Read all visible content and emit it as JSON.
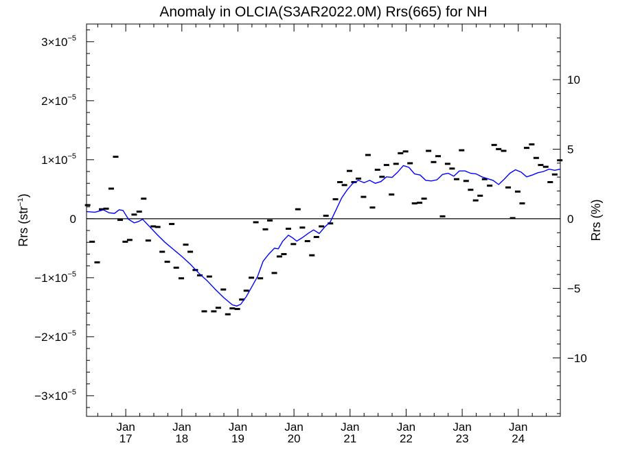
{
  "chart_data": {
    "type": "line",
    "title": "Anomaly in OLCIA(S3AR2022.0M) Rrs(665) for NH",
    "left_axis": {
      "label_main": "Rrs (str",
      "label_exp": "−1",
      "label_end": ")",
      "range": [
        -3.35e-05,
        3.3e-05
      ],
      "ticks": [
        {
          "value": -3e-05,
          "mant": "−3×10",
          "exp": "−5"
        },
        {
          "value": -2e-05,
          "mant": "−2×10",
          "exp": "−5"
        },
        {
          "value": -1e-05,
          "mant": "−1×10",
          "exp": "−5"
        },
        {
          "value": 0,
          "mant": "0",
          "exp": ""
        },
        {
          "value": 1e-05,
          "mant": "1×10",
          "exp": "−5"
        },
        {
          "value": 2e-05,
          "mant": "2×10",
          "exp": "−5"
        },
        {
          "value": 3e-05,
          "mant": "3×10",
          "exp": "−5"
        }
      ]
    },
    "right_axis": {
      "label": "Rrs (%)",
      "range": [
        -14.2,
        14.0
      ],
      "ticks": [
        {
          "value": -10,
          "label": "−10"
        },
        {
          "value": -5,
          "label": "−5"
        },
        {
          "value": 0,
          "label": "0"
        },
        {
          "value": 5,
          "label": "5"
        },
        {
          "value": 10,
          "label": "10"
        }
      ]
    },
    "x_axis": {
      "range": [
        2016.3,
        2024.75
      ],
      "ticks": [
        {
          "value": 2017,
          "month": "Jan",
          "year": "17"
        },
        {
          "value": 2018,
          "month": "Jan",
          "year": "18"
        },
        {
          "value": 2019,
          "month": "Jan",
          "year": "19"
        },
        {
          "value": 2020,
          "month": "Jan",
          "year": "20"
        },
        {
          "value": 2021,
          "month": "Jan",
          "year": "21"
        },
        {
          "value": 2022,
          "month": "Jan",
          "year": "22"
        },
        {
          "value": 2023,
          "month": "Jan",
          "year": "23"
        },
        {
          "value": 2024,
          "month": "Jan",
          "year": "24"
        }
      ]
    },
    "zero_line": true,
    "series": [
      {
        "kind": "monthly",
        "color": "#000000",
        "x": [
          2016.32,
          2016.4,
          2016.49,
          2016.57,
          2016.65,
          2016.74,
          2016.82,
          2016.9,
          2016.99,
          2017.07,
          2017.15,
          2017.24,
          2017.32,
          2017.4,
          2017.49,
          2017.57,
          2017.65,
          2017.74,
          2017.82,
          2017.9,
          2017.99,
          2018.07,
          2018.15,
          2018.24,
          2018.32,
          2018.4,
          2018.49,
          2018.57,
          2018.65,
          2018.74,
          2018.82,
          2018.9,
          2018.99,
          2019.07,
          2019.15,
          2019.24,
          2019.32,
          2019.4,
          2019.49,
          2019.57,
          2019.65,
          2019.74,
          2019.82,
          2019.9,
          2019.99,
          2020.07,
          2020.15,
          2020.24,
          2020.32,
          2020.4,
          2020.49,
          2020.57,
          2020.65,
          2020.74,
          2020.82,
          2020.9,
          2020.99,
          2021.07,
          2021.15,
          2021.24,
          2021.32,
          2021.4,
          2021.49,
          2021.57,
          2021.65,
          2021.74,
          2021.82,
          2021.9,
          2021.99,
          2022.07,
          2022.15,
          2022.24,
          2022.32,
          2022.4,
          2022.49,
          2022.57,
          2022.65,
          2022.74,
          2022.82,
          2022.9,
          2022.99,
          2023.07,
          2023.15,
          2023.24,
          2023.32,
          2023.4,
          2023.49,
          2023.57,
          2023.65,
          2023.74,
          2023.82,
          2023.9,
          2023.99,
          2024.07,
          2024.15,
          2024.24,
          2024.32,
          2024.4,
          2024.49,
          2024.57,
          2024.65,
          2024.74
        ],
        "y": [
          2.3e-06,
          -3.9e-06,
          -7.4e-06,
          1.6e-06,
          1.7e-06,
          5.1e-06,
          1.05e-05,
          -2e-07,
          -3.9e-06,
          -3.6e-06,
          7e-07,
          1.2e-06,
          3.4e-06,
          -3.7e-06,
          -1.3e-06,
          -1.4e-06,
          -5.6e-06,
          -7.3e-06,
          -9e-07,
          -8.3e-06,
          -1.01e-05,
          -4.4e-06,
          -5.6e-06,
          -8.7e-06,
          -9.6e-06,
          -1.57e-05,
          -9.8e-06,
          -1.57e-05,
          -1.51e-05,
          -1.2e-05,
          -1.62e-05,
          -1.52e-05,
          -1.53e-05,
          -1.37e-05,
          -1.22e-05,
          -1e-05,
          -6e-07,
          -1.01e-05,
          -1.8e-06,
          -3e-07,
          -9.2e-06,
          -6.4e-06,
          -6e-06,
          -1.7e-06,
          -4.3e-06,
          1.6e-06,
          -1.5e-06,
          -3.8e-06,
          -6.2e-06,
          -3.1e-06,
          -1.3e-06,
          5e-07,
          -8e-07,
          3.3e-06,
          6.2e-06,
          5.7e-06,
          8.1e-06,
          6.2e-06,
          6.8e-06,
          3.7e-06,
          1.08e-05,
          1.9e-06,
          8.3e-06,
          7.1e-06,
          9.1e-06,
          4.1e-06,
          9.3e-06,
          1.11e-05,
          1.14e-05,
          9.4e-06,
          2.6e-06,
          2.7e-06,
          3.4e-06,
          1.15e-05,
          9.6e-06,
          1.06e-05,
          4e-07,
          9.3e-06,
          8.5e-06,
          6.7e-06,
          1.16e-05,
          6.4e-06,
          4.9e-06,
          3.1e-06,
          3.9e-06,
          6.7e-06,
          5.6e-06,
          1.25e-05,
          1.18e-05,
          1.15e-05,
          5.3e-06,
          1e-07,
          4.6e-06,
          2.6e-06,
          1.2e-05,
          1.26e-05,
          1.03e-05,
          9.1e-06,
          8.8e-06,
          6.2e-06,
          7.5e-06,
          9.9e-06
        ]
      },
      {
        "kind": "running-mean",
        "color": "#0000ff",
        "x": [
          2016.3,
          2016.45,
          2016.6,
          2016.7,
          2016.8,
          2016.88,
          2016.95,
          2017.05,
          2017.15,
          2017.22,
          2017.3,
          2017.42,
          2017.55,
          2017.7,
          2017.85,
          2018.0,
          2018.15,
          2018.3,
          2018.45,
          2018.6,
          2018.75,
          2018.9,
          2018.98,
          2019.05,
          2019.15,
          2019.25,
          2019.35,
          2019.45,
          2019.55,
          2019.65,
          2019.72,
          2019.8,
          2019.9,
          2019.97,
          2020.05,
          2020.15,
          2020.25,
          2020.35,
          2020.45,
          2020.55,
          2020.65,
          2020.75,
          2020.85,
          2020.95,
          2021.05,
          2021.15,
          2021.25,
          2021.35,
          2021.45,
          2021.55,
          2021.65,
          2021.75,
          2021.85,
          2021.95,
          2022.05,
          2022.15,
          2022.25,
          2022.35,
          2022.45,
          2022.55,
          2022.65,
          2022.75,
          2022.85,
          2022.95,
          2023.05,
          2023.15,
          2023.25,
          2023.35,
          2023.45,
          2023.55,
          2023.65,
          2023.75,
          2023.85,
          2023.95,
          2024.05,
          2024.15,
          2024.25,
          2024.35,
          2024.45,
          2024.55,
          2024.65,
          2024.75
        ],
        "y": [
          1.2e-06,
          1.1e-06,
          1.5e-06,
          1e-06,
          9e-07,
          1.5e-06,
          1.4e-06,
          -1e-07,
          -7e-07,
          -5e-07,
          -1e-07,
          -1.3e-06,
          -2.6e-06,
          -4e-06,
          -5.2e-06,
          -6.4e-06,
          -7.7e-06,
          -9.2e-06,
          -1.05e-05,
          -1.2e-05,
          -1.34e-05,
          -1.46e-05,
          -1.48e-05,
          -1.45e-05,
          -1.32e-05,
          -1.15e-05,
          -9.8e-06,
          -7.2e-06,
          -6e-06,
          -5e-06,
          -5.1e-06,
          -3.8e-06,
          -2.8e-06,
          -3.2e-06,
          -3.8e-06,
          -3.2e-06,
          -2.5e-06,
          -1.9e-06,
          -2.5e-06,
          -1.4e-06,
          -5e-07,
          1.5e-06,
          3.5e-06,
          4.9e-06,
          6e-06,
          6.5e-06,
          6.1e-06,
          6.5e-06,
          6e-06,
          6.3e-06,
          7.1e-06,
          7e-06,
          7.9e-06,
          9e-06,
          8.7e-06,
          7.6e-06,
          7.4e-06,
          6.5e-06,
          6.4e-06,
          6.6e-06,
          7.5e-06,
          7.7e-06,
          7.2e-06,
          8.1e-06,
          8.1e-06,
          7.7e-06,
          7.6e-06,
          7.1e-06,
          6.8e-06,
          6.5e-06,
          5.8e-06,
          6.7e-06,
          7.7e-06,
          8.3e-06,
          7.9e-06,
          7.1e-06,
          7.4e-06,
          7.8e-06,
          8e-06,
          8.4e-06,
          8.2e-06,
          8.4e-06
        ]
      }
    ]
  }
}
